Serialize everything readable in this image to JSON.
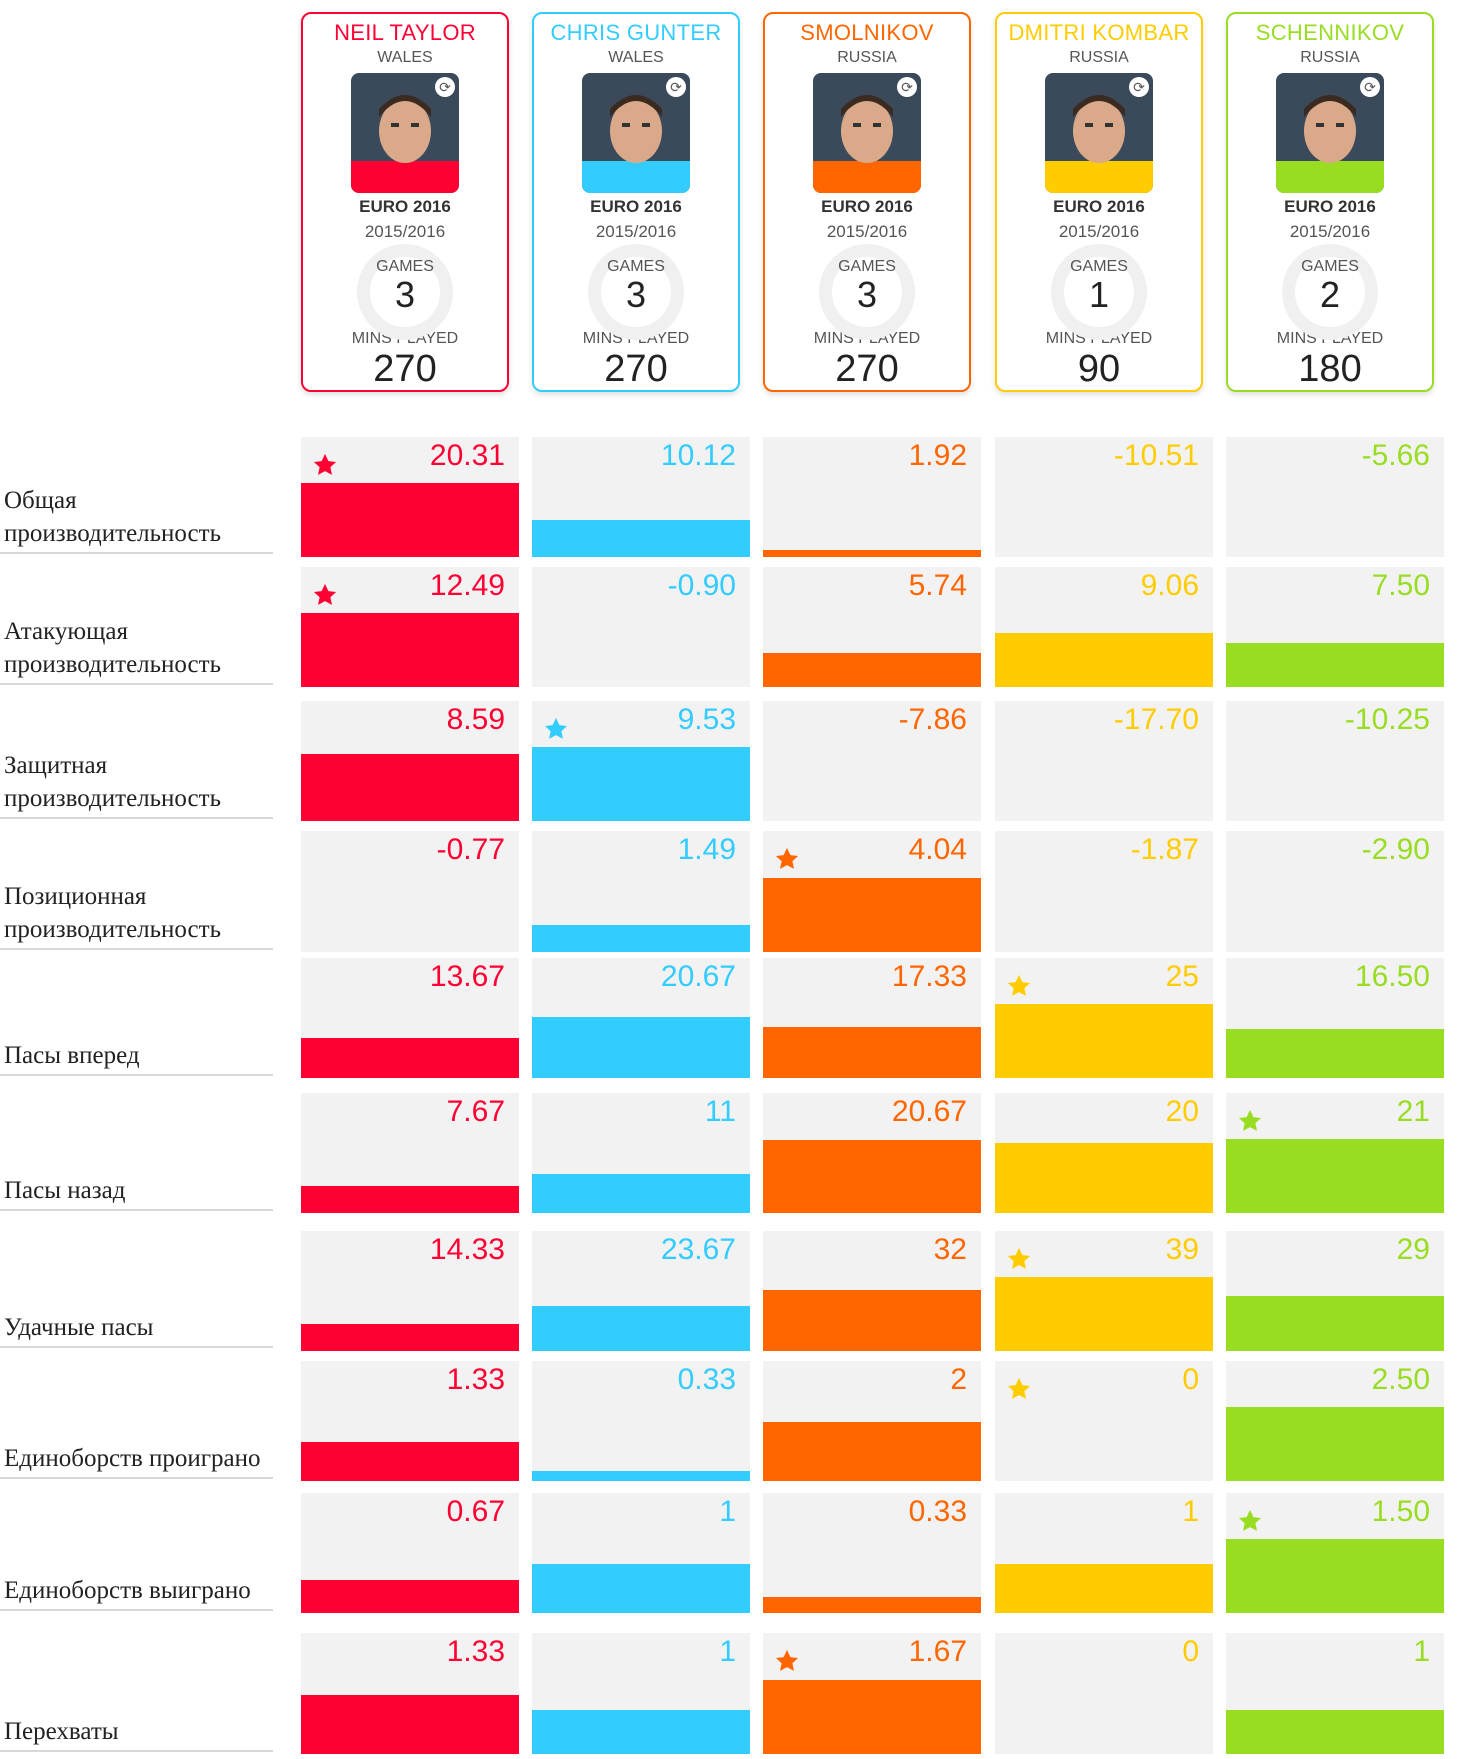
{
  "players": [
    {
      "name": "NEIL TAYLOR",
      "country": "WALES",
      "color": "#ff0033",
      "tournament": "EURO 2016",
      "season": "2015/2016",
      "games_label": "GAMES",
      "games": "3",
      "mins_label": "MINS PLAYED",
      "mins": "270",
      "photo_icon": "player-photo-icon",
      "badge_icon": "refresh-icon"
    },
    {
      "name": "CHRIS GUNTER",
      "country": "WALES",
      "color": "#33ccff",
      "tournament": "EURO 2016",
      "season": "2015/2016",
      "games_label": "GAMES",
      "games": "3",
      "mins_label": "MINS PLAYED",
      "mins": "270",
      "photo_icon": "player-photo-icon",
      "badge_icon": "refresh-icon"
    },
    {
      "name": "SMOLNIKOV",
      "country": "RUSSIA",
      "color": "#ff6600",
      "tournament": "EURO 2016",
      "season": "2015/2016",
      "games_label": "GAMES",
      "games": "3",
      "mins_label": "MINS PLAYED",
      "mins": "270",
      "photo_icon": "player-photo-icon",
      "badge_icon": "refresh-icon"
    },
    {
      "name": "DMITRI KOMBAR",
      "country": "RUSSIA",
      "color": "#ffcc00",
      "tournament": "EURO 2016",
      "season": "2015/2016",
      "games_label": "GAMES",
      "games": "1",
      "mins_label": "MINS PLAYED",
      "mins": "90",
      "photo_icon": "player-photo-icon",
      "badge_icon": "refresh-icon"
    },
    {
      "name": "SCHENNIKOV",
      "country": "RUSSIA",
      "color": "#99dd22",
      "tournament": "EURO 2016",
      "season": "2015/2016",
      "games_label": "GAMES",
      "games": "2",
      "mins_label": "MINS PLAYED",
      "mins": "180",
      "photo_icon": "player-photo-icon",
      "badge_icon": "refresh-icon"
    }
  ],
  "chart_data": {
    "type": "bar",
    "title": "",
    "series_names": [
      "NEIL TAYLOR",
      "CHRIS GUNTER",
      "SMOLNIKOV",
      "DMITRI KOMBAR",
      "SCHENNIKOV"
    ],
    "colors": [
      "#ff0033",
      "#33ccff",
      "#ff6600",
      "#ffcc00",
      "#99dd22"
    ],
    "metrics": [
      {
        "label": "Общая производительность",
        "display": [
          "20.31",
          "10.12",
          "1.92",
          "-10.51",
          "-5.66"
        ],
        "values": [
          20.31,
          10.12,
          1.92,
          -10.51,
          -5.66
        ],
        "best": 0
      },
      {
        "label": "Атакующая производительность",
        "display": [
          "12.49",
          "-0.90",
          "5.74",
          "9.06",
          "7.50"
        ],
        "values": [
          12.49,
          -0.9,
          5.74,
          9.06,
          7.5
        ],
        "best": 0
      },
      {
        "label": "Защитная производительность",
        "display": [
          "8.59",
          "9.53",
          "-7.86",
          "-17.70",
          "-10.25"
        ],
        "values": [
          8.59,
          9.53,
          -7.86,
          -17.7,
          -10.25
        ],
        "best": 1
      },
      {
        "label": "Позиционная производительность",
        "display": [
          "-0.77",
          "1.49",
          "4.04",
          "-1.87",
          "-2.90"
        ],
        "values": [
          -0.77,
          1.49,
          4.04,
          -1.87,
          -2.9
        ],
        "best": 2
      },
      {
        "label": "Пасы вперед",
        "display": [
          "13.67",
          "20.67",
          "17.33",
          "25",
          "16.50"
        ],
        "values": [
          13.67,
          20.67,
          17.33,
          25,
          16.5
        ],
        "best": 3
      },
      {
        "label": "Пасы назад",
        "display": [
          "7.67",
          "11",
          "20.67",
          "20",
          "21"
        ],
        "values": [
          7.67,
          11,
          20.67,
          20,
          21
        ],
        "best": 4
      },
      {
        "label": "Удачные пасы",
        "display": [
          "14.33",
          "23.67",
          "32",
          "39",
          "29"
        ],
        "values": [
          14.33,
          23.67,
          32,
          39,
          29
        ],
        "best": 3
      },
      {
        "label": "Единоборств проиграно",
        "display": [
          "1.33",
          "0.33",
          "2",
          "0",
          "2.50"
        ],
        "values": [
          1.33,
          0.33,
          2,
          0,
          2.5
        ],
        "best": 3
      },
      {
        "label": "Единоборств выиграно",
        "display": [
          "0.67",
          "1",
          "0.33",
          "1",
          "1.50"
        ],
        "values": [
          0.67,
          1,
          0.33,
          1,
          1.5
        ],
        "best": 4
      },
      {
        "label": "Перехваты",
        "display": [
          "1.33",
          "1",
          "1.67",
          "0",
          "1"
        ],
        "values": [
          1.33,
          1,
          1.67,
          0,
          1
        ],
        "best": 2
      }
    ]
  }
}
